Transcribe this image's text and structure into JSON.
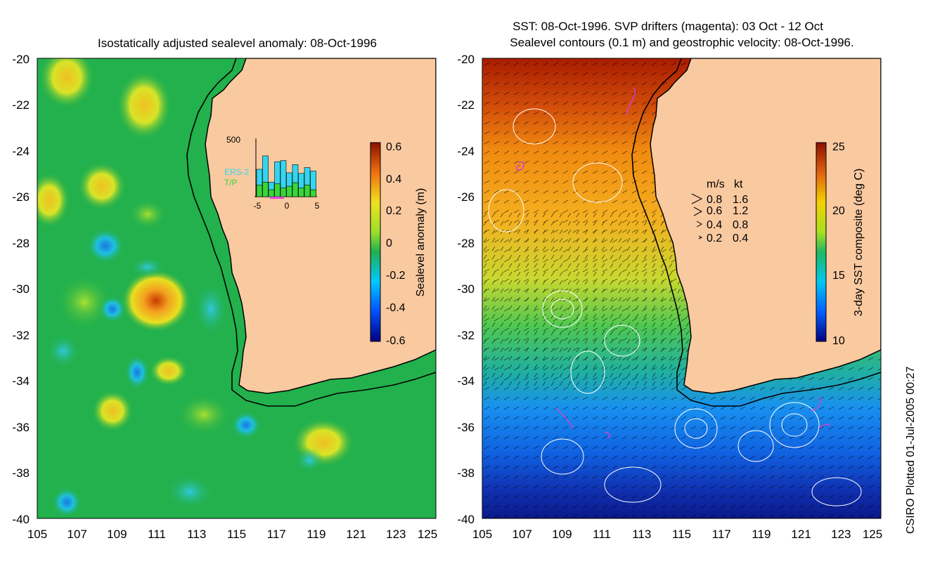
{
  "left_panel": {
    "title": "Isostatically adjusted sealevel anomaly: 08-Oct-1996",
    "x_ticks": [
      "105",
      "107",
      "109",
      "111",
      "113",
      "115",
      "117",
      "119",
      "121",
      "123",
      "125"
    ],
    "y_ticks": [
      "-20",
      "-22",
      "-24",
      "-26",
      "-28",
      "-30",
      "-32",
      "-34",
      "-36",
      "-38",
      "-40"
    ],
    "colorbar": {
      "label": "Sealevel anomaly (m)",
      "ticks": [
        "0.6",
        "0.4",
        "0.2",
        "0",
        "-0.2",
        "-0.4",
        "-0.6"
      ]
    },
    "inset": {
      "ymax_label": "500",
      "x_ticks": [
        "-5",
        "0",
        "5"
      ],
      "legend": [
        {
          "name": "ERS-2",
          "color": "#33d6f0"
        },
        {
          "name": "T/P",
          "color": "#39d639"
        }
      ],
      "bars_total": [
        0.47,
        0.7,
        0.25,
        0.6,
        0.62,
        0.41,
        0.55,
        0.4,
        0.5,
        0.44
      ],
      "bars_tp": [
        0.2,
        0.25,
        0.12,
        0.22,
        0.15,
        0.18,
        0.24,
        0.15,
        0.2,
        0.12
      ]
    }
  },
  "right_panel": {
    "title_line1": "SST: 08-Oct-1996. SVP drifters (magenta): 03 Oct - 12 Oct",
    "title_line2": "Sealevel contours (0.1 m) and geostrophic velocity: 08-Oct-1996.",
    "x_ticks": [
      "105",
      "107",
      "109",
      "111",
      "113",
      "115",
      "117",
      "119",
      "121",
      "123",
      "125"
    ],
    "y_ticks": [
      "-20",
      "-22",
      "-24",
      "-26",
      "-28",
      "-30",
      "-32",
      "-34",
      "-36",
      "-38",
      "-40"
    ],
    "colorbar": {
      "label": "3-day SST composite (deg C)",
      "ticks": [
        "25",
        "20",
        "15",
        "10"
      ]
    },
    "velocity_legend": {
      "header_ms": "m/s",
      "header_kt": "kt",
      "rows": [
        {
          "ms": "0.8",
          "kt": "1.6"
        },
        {
          "ms": "0.6",
          "kt": "1.2"
        },
        {
          "ms": "0.4",
          "kt": "0.8"
        },
        {
          "ms": "0.2",
          "kt": "0.4"
        }
      ]
    }
  },
  "credit": "CSIRO Plotted 01-Jul-2005 00:27",
  "colors": {
    "land": "#f9c9a0",
    "ocean_anomaly_base": "#22b14c",
    "drifter_tracks": "#d040d0",
    "contours": "#ffffff"
  }
}
